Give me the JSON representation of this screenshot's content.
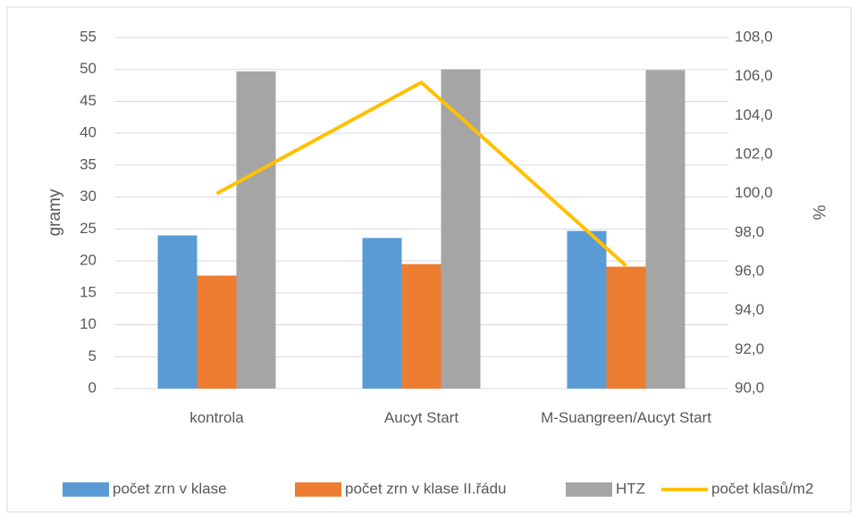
{
  "chart_data": {
    "type": "bar",
    "categories": [
      "kontrola",
      "Aucyt Start",
      "M-Suangreen/Aucyt Start"
    ],
    "series": [
      {
        "name": "počet zrn v klase",
        "color": "#5b9bd5",
        "values": [
          24.0,
          23.6,
          24.7
        ]
      },
      {
        "name": "počet zrn v klase II.řádu",
        "color": "#ed7d31",
        "values": [
          17.7,
          19.5,
          19.1
        ]
      },
      {
        "name": "HTZ",
        "color": "#a5a5a5",
        "values": [
          49.7,
          50.0,
          49.9
        ]
      },
      {
        "name": "počet klasů/m2",
        "color": "#ffc000",
        "type": "line",
        "axis": "y2",
        "values": [
          100.0,
          105.7,
          96.3
        ]
      }
    ],
    "ylabel": "gramy",
    "y2label": "%",
    "ylim": [
      0,
      55
    ],
    "yticks": [
      0,
      5,
      10,
      15,
      20,
      25,
      30,
      35,
      40,
      45,
      50,
      55
    ],
    "y2lim": [
      90,
      108
    ],
    "y2ticks": [
      {
        "value": 90,
        "label": "90,0"
      },
      {
        "value": 92,
        "label": "92,0"
      },
      {
        "value": 94,
        "label": "94,0"
      },
      {
        "value": 96,
        "label": "96,0"
      },
      {
        "value": 98,
        "label": "98,0"
      },
      {
        "value": 100,
        "label": "100,0"
      },
      {
        "value": 102,
        "label": "102,0"
      },
      {
        "value": 104,
        "label": "104,0"
      },
      {
        "value": 106,
        "label": "106,0"
      },
      {
        "value": 108,
        "label": "108,0"
      }
    ],
    "grid": true,
    "legend": "bottom"
  }
}
